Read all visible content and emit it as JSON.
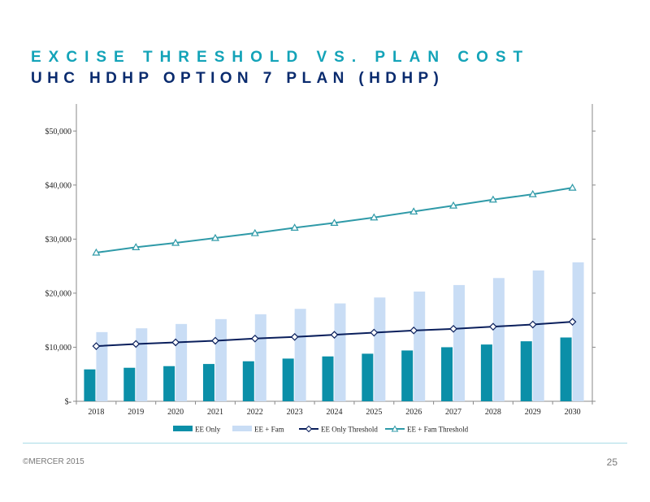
{
  "header": {
    "title": "EXCISE THRESHOLD VS. PLAN COST",
    "subtitle": "UHC HDHP OPTION 7 PLAN (HDHP)"
  },
  "footer": {
    "copyright": "©MERCER 2015",
    "page_number": "25"
  },
  "colors": {
    "ee_only": "#0b8fa8",
    "ee_fam": "#c9ddf5",
    "ee_only_threshold": "#0a1f5c",
    "ee_fam_threshold": "#2f9aa8"
  },
  "chart_data": {
    "type": "bar",
    "categories": [
      "2018",
      "2019",
      "2020",
      "2021",
      "2022",
      "2023",
      "2024",
      "2025",
      "2026",
      "2027",
      "2028",
      "2029",
      "2030"
    ],
    "ytick_labels": [
      "$-",
      "$10,000",
      "$20,000",
      "$30,000",
      "$40,000",
      "$50,000"
    ],
    "ylim": [
      0,
      55000
    ],
    "ystep": 10000,
    "grid": false,
    "legend_position": "bottom",
    "series": [
      {
        "name": "EE Only",
        "kind": "bar",
        "values": [
          5900,
          6200,
          6500,
          6900,
          7400,
          7900,
          8300,
          8800,
          9400,
          10000,
          10500,
          11100,
          11800
        ]
      },
      {
        "name": "EE + Fam",
        "kind": "bar",
        "values": [
          12800,
          13500,
          14300,
          15200,
          16100,
          17100,
          18100,
          19200,
          20300,
          21500,
          22800,
          24200,
          25700
        ]
      },
      {
        "name": "EE Only Threshold",
        "kind": "line",
        "marker": "diamond",
        "values": [
          10200,
          10600,
          10900,
          11200,
          11600,
          11900,
          12300,
          12700,
          13100,
          13400,
          13800,
          14200,
          14700
        ]
      },
      {
        "name": "EE + Fam Threshold",
        "kind": "line",
        "marker": "triangle",
        "values": [
          27500,
          28500,
          29300,
          30200,
          31100,
          32100,
          33000,
          34000,
          35100,
          36200,
          37300,
          38300,
          39500
        ]
      }
    ]
  }
}
